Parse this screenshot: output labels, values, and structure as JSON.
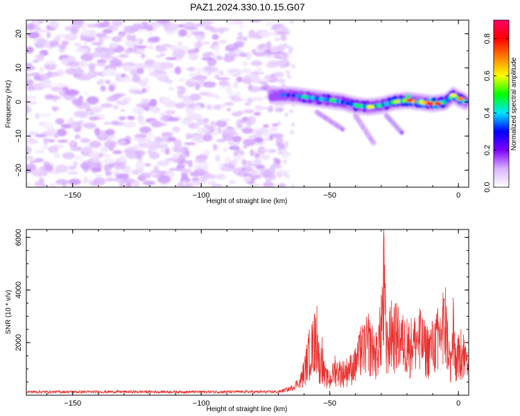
{
  "title": "PAZ1.2024.330.10.15.G07",
  "chart_data": [
    {
      "type": "heatmap",
      "xlabel": "Height of straight line (km)",
      "ylabel": "Frequency (Hz)",
      "xlim": [
        -168,
        4
      ],
      "ylim": [
        -25,
        24
      ],
      "xticks": [
        -150,
        -100,
        -50,
        0
      ],
      "yticks": [
        -20,
        -10,
        0,
        10,
        20
      ],
      "colorbar": {
        "label": "Normalized spectral amplitude",
        "range": [
          0,
          0.9
        ],
        "ticks": [
          0.0,
          0.2,
          0.4,
          0.6,
          0.8
        ],
        "colors": [
          "#ffffff",
          "#d9b3ff",
          "#7f00ff",
          "#0000ff",
          "#00e5ff",
          "#00ff00",
          "#ffff00",
          "#ff8000",
          "#ff0000",
          "#ff0066"
        ]
      },
      "noise_region_x": [
        -168,
        -67
      ],
      "noise_level": 0.1,
      "signal_ridge": {
        "x": [
          -73,
          -65,
          -60,
          -55,
          -50,
          -45,
          -40,
          -35,
          -30,
          -25,
          -20,
          -15,
          -10,
          -5,
          -2,
          0,
          3
        ],
        "frequency": [
          2,
          2,
          1.5,
          1,
          0.5,
          0,
          -1,
          -1.5,
          -1,
          0,
          0.5,
          0,
          -0.5,
          0,
          2,
          1,
          0
        ],
        "amplitude": [
          0.25,
          0.3,
          0.45,
          0.4,
          0.5,
          0.45,
          0.5,
          0.6,
          0.55,
          0.6,
          0.85,
          0.75,
          0.9,
          0.5,
          0.6,
          0.7,
          0.5
        ]
      },
      "secondary_branches": [
        {
          "x": [
            -55,
            -45
          ],
          "frequency": [
            -3,
            -8
          ],
          "amplitude": 0.2
        },
        {
          "x": [
            -40,
            -33
          ],
          "frequency": [
            -4,
            -12
          ],
          "amplitude": 0.15
        },
        {
          "x": [
            -28,
            -22
          ],
          "frequency": [
            -4,
            -9
          ],
          "amplitude": 0.35
        }
      ]
    },
    {
      "type": "line",
      "xlabel": "Height of straight line (km)",
      "ylabel": "SNR (10 * v/v)",
      "xlim": [
        -168,
        4
      ],
      "ylim": [
        0,
        6300
      ],
      "xticks": [
        -150,
        -100,
        -50,
        0
      ],
      "yticks": [
        2000,
        4000,
        6000
      ],
      "series": [
        {
          "color": "#e8302e",
          "x": [
            -168,
            -70,
            -65,
            -62,
            -60,
            -58,
            -56,
            -55,
            -54,
            -53,
            -52,
            -50,
            -48,
            -45,
            -40,
            -38,
            -35,
            -32,
            -30,
            -29,
            -28,
            -26,
            -24,
            -20,
            -15,
            -12,
            -8,
            -6,
            -5,
            -3,
            -2,
            -1,
            0,
            1,
            2,
            4
          ],
          "envelope": [
            150,
            150,
            300,
            600,
            1400,
            2500,
            3100,
            3400,
            1600,
            2200,
            1100,
            900,
            1500,
            1300,
            1800,
            2600,
            3100,
            2400,
            3800,
            6300,
            2800,
            3600,
            3500,
            2900,
            3300,
            2600,
            3300,
            3900,
            4100,
            1600,
            3700,
            1800,
            2300,
            2500,
            2300,
            1700
          ]
        }
      ]
    }
  ]
}
